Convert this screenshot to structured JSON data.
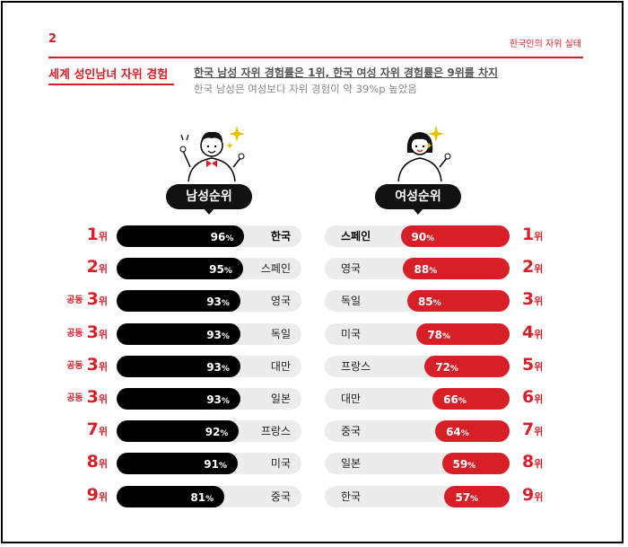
{
  "header": {
    "page_number": "2",
    "report_title": "한국인의 자위 실태",
    "section_title": "세계 성인남녀 자위 경험",
    "headline": "한국 남성 자위 경험률은 1위, 한국 여성 자위 경험률은 9위를 차지",
    "subline": "한국 남성은 여성보다 자위 경험이 약 39%p 높았음"
  },
  "colors": {
    "accent": "#d71f28",
    "male_bar": "#000000",
    "female_bar": "#d71f28",
    "track": "#ececec"
  },
  "chart_data": [
    {
      "type": "bar",
      "title": "남성순위",
      "unit": "%",
      "rows": [
        {
          "rank": "1",
          "rank_suffix": "위",
          "rank_prefix": "",
          "country": "한국",
          "value": 96,
          "highlight": true
        },
        {
          "rank": "2",
          "rank_suffix": "위",
          "rank_prefix": "",
          "country": "스페인",
          "value": 95,
          "highlight": false
        },
        {
          "rank": "3",
          "rank_suffix": "위",
          "rank_prefix": "공동",
          "country": "영국",
          "value": 93,
          "highlight": false
        },
        {
          "rank": "3",
          "rank_suffix": "위",
          "rank_prefix": "공동",
          "country": "독일",
          "value": 93,
          "highlight": false
        },
        {
          "rank": "3",
          "rank_suffix": "위",
          "rank_prefix": "공동",
          "country": "대만",
          "value": 93,
          "highlight": false
        },
        {
          "rank": "3",
          "rank_suffix": "위",
          "rank_prefix": "공동",
          "country": "일본",
          "value": 93,
          "highlight": false
        },
        {
          "rank": "7",
          "rank_suffix": "위",
          "rank_prefix": "",
          "country": "프랑스",
          "value": 92,
          "highlight": false
        },
        {
          "rank": "8",
          "rank_suffix": "위",
          "rank_prefix": "",
          "country": "미국",
          "value": 91,
          "highlight": false
        },
        {
          "rank": "9",
          "rank_suffix": "위",
          "rank_prefix": "",
          "country": "중국",
          "value": 81,
          "highlight": false
        }
      ]
    },
    {
      "type": "bar",
      "title": "여성순위",
      "unit": "%",
      "rows": [
        {
          "rank": "1",
          "rank_suffix": "위",
          "rank_prefix": "",
          "country": "스페인",
          "value": 90,
          "highlight": true
        },
        {
          "rank": "2",
          "rank_suffix": "위",
          "rank_prefix": "",
          "country": "영국",
          "value": 88,
          "highlight": false
        },
        {
          "rank": "3",
          "rank_suffix": "위",
          "rank_prefix": "",
          "country": "독일",
          "value": 85,
          "highlight": false
        },
        {
          "rank": "4",
          "rank_suffix": "위",
          "rank_prefix": "",
          "country": "미국",
          "value": 78,
          "highlight": false
        },
        {
          "rank": "5",
          "rank_suffix": "위",
          "rank_prefix": "",
          "country": "프랑스",
          "value": 72,
          "highlight": false
        },
        {
          "rank": "6",
          "rank_suffix": "위",
          "rank_prefix": "",
          "country": "대만",
          "value": 66,
          "highlight": false
        },
        {
          "rank": "7",
          "rank_suffix": "위",
          "rank_prefix": "",
          "country": "중국",
          "value": 64,
          "highlight": false
        },
        {
          "rank": "8",
          "rank_suffix": "위",
          "rank_prefix": "",
          "country": "일본",
          "value": 59,
          "highlight": false
        },
        {
          "rank": "9",
          "rank_suffix": "위",
          "rank_prefix": "",
          "country": "한국",
          "value": 57,
          "highlight": false
        }
      ]
    }
  ],
  "icons": {
    "male": "man-cheering-icon",
    "female": "woman-cheering-icon",
    "sparkle": "sparkle-icon"
  }
}
